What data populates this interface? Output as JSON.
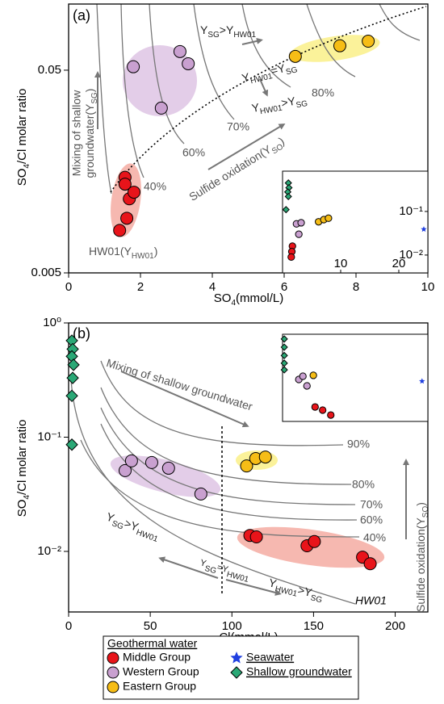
{
  "chart_data": [
    {
      "type": "scatter",
      "panel": "(a)",
      "x_label": [
        "SO",
        "4",
        "(mmol/L)"
      ],
      "y_label": [
        "SO",
        "4",
        "/Cl molar ratio"
      ],
      "xlim": [
        0,
        10
      ],
      "xticks": [
        0,
        2,
        4,
        6,
        8,
        10
      ],
      "ylim": [
        0.005,
        0.106
      ],
      "log_y": true,
      "yticks": [
        0.005,
        0.05
      ],
      "series": [
        {
          "color": "#e8141a",
          "marker": "circle",
          "x": [
            1.57,
            1.57,
            1.69,
            1.82,
            1.62,
            1.42
          ],
          "values": [
            0.0148,
            0.0137,
            0.0116,
            0.0125,
            0.0093,
            0.0081
          ]
        },
        {
          "color": "#c9a0d0",
          "marker": "circle",
          "x": [
            1.8,
            2.58,
            3.1,
            3.33
          ],
          "values": [
            0.052,
            0.0325,
            0.0618,
            0.0538
          ]
        },
        {
          "color": "#f6bd16",
          "marker": "circle",
          "x": [
            6.31,
            7.55,
            8.34
          ],
          "values": [
            0.0585,
            0.066,
            0.0695
          ]
        }
      ],
      "annotations": {
        "hw01": [
          "HW01(Y",
          "HW01",
          ")"
        ],
        "mixing": [
          [
            "Mixing of shallow"
          ],
          [
            "groundwater(Y",
            "SG",
            ")"
          ]
        ],
        "sg_gt_hw": [
          "Y",
          "SG",
          ">Y",
          "HW01"
        ],
        "hw_eq_sg": [
          "Y",
          "HW01",
          "=Y",
          "SG"
        ],
        "hw_gt_sg": [
          "Y",
          "HW01",
          ">Y",
          "SG"
        ],
        "sulfide": [
          "Sulfide oxidation(Y",
          "SO",
          ")"
        ],
        "percent": [
          "40%",
          "60%",
          "70%",
          "80%"
        ]
      }
    },
    {
      "type": "scatter",
      "panel": "(b)",
      "x_label": [
        "Cl(mmol/L)"
      ],
      "y_label": [
        "SO",
        "4",
        "/Cl molar ratio"
      ],
      "xlim": [
        0,
        220
      ],
      "xticks": [
        0,
        50,
        100,
        150,
        200
      ],
      "ylim": [
        0.00295,
        1
      ],
      "log_y": true,
      "yticks": [
        {
          "value": 1,
          "label": "10⁰"
        },
        {
          "value": 0.1,
          "label": "10⁻¹"
        },
        {
          "value": 0.01,
          "label": "10⁻²"
        }
      ],
      "series": [
        {
          "color": "#e8141a",
          "marker": "circle",
          "x": [
            111,
            115,
            146,
            150.5,
            180,
            184.7
          ],
          "values": [
            0.0138,
            0.0134,
            0.0112,
            0.0122,
            0.0089,
            0.0078
          ]
        },
        {
          "color": "#c9a0d0",
          "marker": "circle",
          "x": [
            34.6,
            38.5,
            50.9,
            61.2,
            81
          ],
          "values": [
            0.051,
            0.062,
            0.06,
            0.0535,
            0.0318
          ]
        },
        {
          "color": "#f6bd16",
          "marker": "circle",
          "x": [
            109,
            114.6,
            120.5
          ],
          "values": [
            0.056,
            0.065,
            0.067
          ]
        },
        {
          "color": "#2aa876",
          "marker": "diamond",
          "x": [
            2,
            2.5,
            2,
            3,
            2.5,
            2,
            2
          ],
          "values": [
            0.7,
            0.59,
            0.51,
            0.43,
            0.33,
            0.23,
            0.086
          ]
        }
      ],
      "annotations": {
        "mixing": "Mixing of shallow groundwater",
        "percent": [
          "90%",
          "80%",
          "70%",
          "60%",
          "40%"
        ],
        "sulfide": [
          "Sulfide oxidation(Y",
          "SO",
          ")"
        ],
        "sg_gt_hw": [
          "Y",
          "SG",
          ">Y",
          "HW01"
        ],
        "sg_eq_hw": [
          "Y",
          "SG",
          "=Y",
          "HW01"
        ],
        "hw_gt_sg": [
          "Y",
          "HW01",
          ">Y",
          "SG"
        ],
        "hw01": "HW01"
      }
    },
    {
      "type": "scatter",
      "xlim": [
        0,
        25
      ],
      "xticks": [
        10,
        20
      ],
      "ylim": [
        0.0039,
        0.84
      ],
      "log_y": true,
      "yticks": [
        {
          "value": 0.1,
          "label": "10⁻¹"
        },
        {
          "value": 0.01,
          "label": "10⁻²"
        }
      ],
      "series": [
        {
          "color": "#2aa876",
          "marker": "diamond",
          "x": [
            1,
            1.1,
            0.9,
            1,
            0.6
          ],
          "values": [
            0.45,
            0.35,
            0.28,
            0.22,
            0.11
          ]
        },
        {
          "color": "#e8141a",
          "marker": "circle",
          "x": [
            1.7,
            1.6,
            1.5
          ],
          "values": [
            0.016,
            0.012,
            0.009
          ]
        },
        {
          "color": "#c9a0d0",
          "marker": "circle",
          "x": [
            2.4,
            3.2,
            2.8
          ],
          "values": [
            0.052,
            0.055,
            0.03
          ]
        },
        {
          "color": "#f6bd16",
          "marker": "circle",
          "x": [
            6.2,
            7.1,
            7.9
          ],
          "values": [
            0.058,
            0.065,
            0.07
          ]
        },
        {
          "color": "#1f3fe0",
          "marker": "star",
          "x": [
            24.3
          ],
          "values": [
            0.039
          ]
        }
      ]
    },
    {
      "type": "scatter",
      "xlim": [
        0,
        25
      ],
      "ylim": [
        0.004,
        1
      ],
      "log_y": true,
      "series": [
        {
          "color": "#2aa876",
          "marker": "diamond",
          "x": [
            0.3,
            0.3,
            0.3,
            0.3,
            0.3
          ],
          "values": [
            0.74,
            0.44,
            0.26,
            0.16,
            0.105
          ]
        },
        {
          "color": "#c9a0d0",
          "marker": "circle",
          "x": [
            2.8,
            3.5,
            4.2
          ],
          "values": [
            0.057,
            0.07,
            0.038
          ]
        },
        {
          "color": "#f6bd16",
          "marker": "circle",
          "x": [
            5.3
          ],
          "values": [
            0.074
          ]
        },
        {
          "color": "#e8141a",
          "marker": "circle",
          "x": [
            5.6,
            6.9,
            8.3
          ],
          "values": [
            0.01,
            0.0082,
            0.006
          ]
        },
        {
          "color": "#1f3fe0",
          "marker": "star",
          "x": [
            24
          ],
          "values": [
            0.051
          ]
        }
      ]
    }
  ],
  "legend": {
    "title": "Geothermal water",
    "entries": [
      {
        "name": "Middle Group",
        "color": "#e8141a",
        "marker": "circle"
      },
      {
        "name": "Western Group",
        "color": "#c9a0d0",
        "marker": "circle"
      },
      {
        "name": "Eastern Group",
        "color": "#f6bd16",
        "marker": "circle"
      },
      {
        "name": "Seawater",
        "color": "#1f3fe0",
        "marker": "star"
      },
      {
        "name": "Shallow groundwater",
        "color": "#2aa876",
        "marker": "diamond"
      }
    ]
  }
}
